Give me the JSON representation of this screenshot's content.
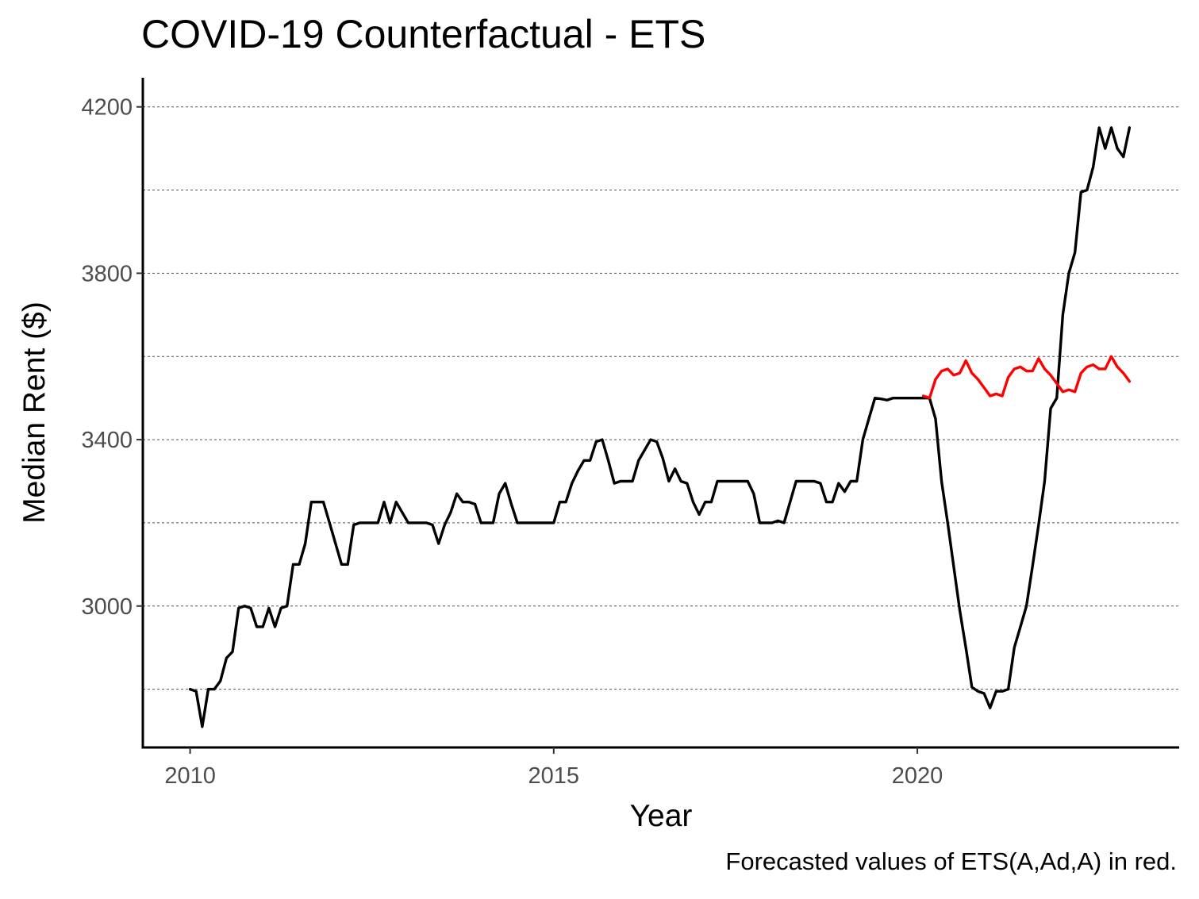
{
  "title": "COVID-19 Counterfactual - ETS",
  "caption": "Forecasted values of ETS(A,Ad,A) in red.",
  "colors": {
    "actual": "#000000",
    "forecast": "#ff0000",
    "grid": "#555555",
    "axis": "#000000"
  },
  "chart_data": {
    "type": "line",
    "title": "COVID-19 Counterfactual - ETS",
    "xlabel": "Year",
    "ylabel": "Median Rent ($)",
    "xlim": [
      2009.35,
      2023.6
    ],
    "ylim": [
      2660,
      4270
    ],
    "x_ticks": [
      2010,
      2015,
      2020
    ],
    "y_ticks": [
      3000,
      3400,
      3800,
      4200
    ],
    "y_gridlines": [
      2800,
      3000,
      3200,
      3400,
      3600,
      3800,
      4000,
      4200
    ],
    "grid": "horizontal dashed",
    "legend": "none",
    "series": [
      {
        "role": "actual",
        "color": "#000000",
        "points": [
          [
            2010.0,
            2800
          ],
          [
            2010.083,
            2795
          ],
          [
            2010.167,
            2710
          ],
          [
            2010.25,
            2800
          ],
          [
            2010.333,
            2800
          ],
          [
            2010.417,
            2820
          ],
          [
            2010.5,
            2875
          ],
          [
            2010.583,
            2890
          ],
          [
            2010.667,
            2995
          ],
          [
            2010.75,
            3000
          ],
          [
            2010.833,
            2995
          ],
          [
            2010.917,
            2950
          ],
          [
            2011.0,
            2950
          ],
          [
            2011.083,
            2995
          ],
          [
            2011.167,
            2950
          ],
          [
            2011.25,
            2995
          ],
          [
            2011.333,
            3000
          ],
          [
            2011.417,
            3100
          ],
          [
            2011.5,
            3100
          ],
          [
            2011.583,
            3150
          ],
          [
            2011.667,
            3250
          ],
          [
            2011.75,
            3250
          ],
          [
            2011.833,
            3250
          ],
          [
            2011.917,
            3200
          ],
          [
            2012.0,
            3150
          ],
          [
            2012.083,
            3100
          ],
          [
            2012.167,
            3100
          ],
          [
            2012.25,
            3195
          ],
          [
            2012.333,
            3200
          ],
          [
            2012.417,
            3200
          ],
          [
            2012.5,
            3200
          ],
          [
            2012.583,
            3200
          ],
          [
            2012.667,
            3250
          ],
          [
            2012.75,
            3200
          ],
          [
            2012.833,
            3250
          ],
          [
            2012.917,
            3225
          ],
          [
            2013.0,
            3200
          ],
          [
            2013.083,
            3200
          ],
          [
            2013.167,
            3200
          ],
          [
            2013.25,
            3200
          ],
          [
            2013.333,
            3195
          ],
          [
            2013.417,
            3150
          ],
          [
            2013.5,
            3195
          ],
          [
            2013.583,
            3225
          ],
          [
            2013.667,
            3270
          ],
          [
            2013.75,
            3250
          ],
          [
            2013.833,
            3250
          ],
          [
            2013.917,
            3245
          ],
          [
            2014.0,
            3200
          ],
          [
            2014.083,
            3200
          ],
          [
            2014.167,
            3200
          ],
          [
            2014.25,
            3270
          ],
          [
            2014.333,
            3295
          ],
          [
            2014.417,
            3245
          ],
          [
            2014.5,
            3200
          ],
          [
            2014.583,
            3200
          ],
          [
            2014.667,
            3200
          ],
          [
            2014.75,
            3200
          ],
          [
            2014.833,
            3200
          ],
          [
            2014.917,
            3200
          ],
          [
            2015.0,
            3200
          ],
          [
            2015.083,
            3250
          ],
          [
            2015.167,
            3250
          ],
          [
            2015.25,
            3295
          ],
          [
            2015.333,
            3325
          ],
          [
            2015.417,
            3350
          ],
          [
            2015.5,
            3350
          ],
          [
            2015.583,
            3395
          ],
          [
            2015.667,
            3400
          ],
          [
            2015.75,
            3350
          ],
          [
            2015.833,
            3295
          ],
          [
            2015.917,
            3300
          ],
          [
            2016.0,
            3300
          ],
          [
            2016.083,
            3300
          ],
          [
            2016.167,
            3350
          ],
          [
            2016.25,
            3375
          ],
          [
            2016.333,
            3400
          ],
          [
            2016.417,
            3395
          ],
          [
            2016.5,
            3355
          ],
          [
            2016.583,
            3300
          ],
          [
            2016.667,
            3330
          ],
          [
            2016.75,
            3300
          ],
          [
            2016.833,
            3295
          ],
          [
            2016.917,
            3250
          ],
          [
            2017.0,
            3220
          ],
          [
            2017.083,
            3250
          ],
          [
            2017.167,
            3250
          ],
          [
            2017.25,
            3300
          ],
          [
            2017.333,
            3300
          ],
          [
            2017.417,
            3300
          ],
          [
            2017.5,
            3300
          ],
          [
            2017.583,
            3300
          ],
          [
            2017.667,
            3300
          ],
          [
            2017.75,
            3270
          ],
          [
            2017.833,
            3200
          ],
          [
            2017.917,
            3200
          ],
          [
            2018.0,
            3200
          ],
          [
            2018.083,
            3205
          ],
          [
            2018.167,
            3200
          ],
          [
            2018.25,
            3250
          ],
          [
            2018.333,
            3300
          ],
          [
            2018.417,
            3300
          ],
          [
            2018.5,
            3300
          ],
          [
            2018.583,
            3300
          ],
          [
            2018.667,
            3295
          ],
          [
            2018.75,
            3250
          ],
          [
            2018.833,
            3250
          ],
          [
            2018.917,
            3295
          ],
          [
            2019.0,
            3275
          ],
          [
            2019.083,
            3300
          ],
          [
            2019.167,
            3300
          ],
          [
            2019.25,
            3400
          ],
          [
            2019.333,
            3450
          ],
          [
            2019.417,
            3500
          ],
          [
            2019.5,
            3498
          ],
          [
            2019.583,
            3495
          ],
          [
            2019.667,
            3500
          ],
          [
            2019.75,
            3500
          ],
          [
            2019.833,
            3500
          ],
          [
            2019.917,
            3500
          ],
          [
            2020.0,
            3500
          ],
          [
            2020.083,
            3500
          ],
          [
            2020.167,
            3500
          ],
          [
            2020.25,
            3450
          ],
          [
            2020.333,
            3300
          ],
          [
            2020.417,
            3200
          ],
          [
            2020.5,
            3095
          ],
          [
            2020.583,
            2990
          ],
          [
            2020.667,
            2900
          ],
          [
            2020.75,
            2805
          ],
          [
            2020.833,
            2795
          ],
          [
            2020.917,
            2790
          ],
          [
            2021.0,
            2755
          ],
          [
            2021.083,
            2795
          ],
          [
            2021.167,
            2795
          ],
          [
            2021.25,
            2800
          ],
          [
            2021.333,
            2900
          ],
          [
            2021.417,
            2950
          ],
          [
            2021.5,
            3000
          ],
          [
            2021.583,
            3095
          ],
          [
            2021.667,
            3195
          ],
          [
            2021.75,
            3300
          ],
          [
            2021.833,
            3475
          ],
          [
            2021.917,
            3500
          ],
          [
            2022.0,
            3700
          ],
          [
            2022.083,
            3800
          ],
          [
            2022.167,
            3850
          ],
          [
            2022.25,
            3995
          ],
          [
            2022.333,
            4000
          ],
          [
            2022.417,
            4055
          ],
          [
            2022.5,
            4150
          ],
          [
            2022.583,
            4100
          ],
          [
            2022.667,
            4150
          ],
          [
            2022.75,
            4100
          ],
          [
            2022.833,
            4080
          ],
          [
            2022.917,
            4150
          ]
        ]
      },
      {
        "role": "forecast",
        "color": "#ff0000",
        "points": [
          [
            2020.083,
            3505
          ],
          [
            2020.167,
            3500
          ],
          [
            2020.25,
            3545
          ],
          [
            2020.333,
            3565
          ],
          [
            2020.417,
            3570
          ],
          [
            2020.5,
            3555
          ],
          [
            2020.583,
            3560
          ],
          [
            2020.667,
            3590
          ],
          [
            2020.75,
            3560
          ],
          [
            2020.833,
            3545
          ],
          [
            2020.917,
            3525
          ],
          [
            2021.0,
            3505
          ],
          [
            2021.083,
            3510
          ],
          [
            2021.167,
            3505
          ],
          [
            2021.25,
            3550
          ],
          [
            2021.333,
            3570
          ],
          [
            2021.417,
            3575
          ],
          [
            2021.5,
            3565
          ],
          [
            2021.583,
            3565
          ],
          [
            2021.667,
            3595
          ],
          [
            2021.75,
            3570
          ],
          [
            2021.833,
            3555
          ],
          [
            2021.917,
            3535
          ],
          [
            2022.0,
            3515
          ],
          [
            2022.083,
            3520
          ],
          [
            2022.167,
            3515
          ],
          [
            2022.25,
            3560
          ],
          [
            2022.333,
            3575
          ],
          [
            2022.417,
            3580
          ],
          [
            2022.5,
            3570
          ],
          [
            2022.583,
            3570
          ],
          [
            2022.667,
            3600
          ],
          [
            2022.75,
            3575
          ],
          [
            2022.833,
            3560
          ],
          [
            2022.917,
            3540
          ]
        ]
      }
    ]
  }
}
